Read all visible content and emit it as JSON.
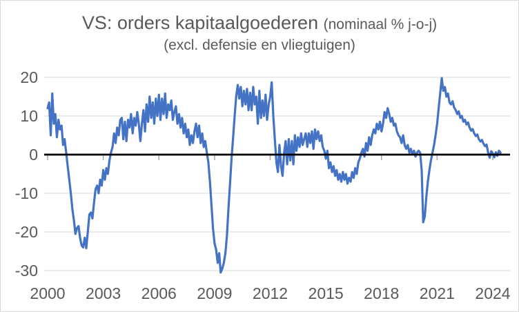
{
  "window": {
    "background": "#ffffff",
    "border_color": "#d9d9d9"
  },
  "title": {
    "main": "VS: orders kapitaalgoederen ",
    "paren": "(nominaal % j-o-j)",
    "subtitle": "(excl. defensie en vliegtuigen)",
    "color": "#595959"
  },
  "chart_data": {
    "type": "line",
    "title": "VS: orders kapitaalgoederen (nominaal % j-o-j) (excl. defensie en vliegtuigen)",
    "xlabel": "",
    "ylabel": "",
    "x_tick_years": [
      2000,
      2003,
      2006,
      2009,
      2012,
      2015,
      2018,
      2021,
      2024
    ],
    "y_ticks": [
      20,
      10,
      0,
      -10,
      -20,
      -30
    ],
    "ylim": [
      -32,
      21.5
    ],
    "xlim": [
      2000,
      2024.8
    ],
    "grid": "horizontal",
    "gridline_values": [
      20,
      10,
      -10,
      -20,
      -30
    ],
    "gridline_color": "#d9d9d9",
    "zero_line": true,
    "zero_line_color": "#000000",
    "tick_mark_color": "#a6a6a6",
    "axis_label_color": "#595959",
    "legend": "none",
    "series": [
      {
        "name": "VS orders kapitaalgoederen excl. defensie en vliegtuigen, nominaal % j-o-j",
        "color": "#4472C4",
        "frequency": "monthly",
        "start": "2000-01",
        "end": "2024-06",
        "values": [
          12,
          13.5,
          5,
          15.8,
          8,
          10.5,
          4.5,
          9,
          6.5,
          7.5,
          2.5,
          4,
          0.5,
          -3,
          -6.5,
          -10,
          -14,
          -17,
          -20.5,
          -19,
          -18.5,
          -21.5,
          -23.5,
          -24,
          -21.5,
          -24.2,
          -20,
          -15.5,
          -15,
          -16.5,
          -12.5,
          -9,
          -8,
          -10,
          -6.5,
          -8,
          -4,
          -6.5,
          -3.5,
          -5,
          -1.5,
          0.5,
          2,
          5.5,
          3,
          7,
          5,
          9,
          9.5,
          4,
          8.5,
          3.5,
          9,
          7,
          10.5,
          5.5,
          9.5,
          7.5,
          11,
          8,
          3.5,
          8,
          11.5,
          6,
          13,
          8.5,
          15,
          9.5,
          13.5,
          8,
          14.5,
          10,
          15.5,
          9,
          14.5,
          10.5,
          15.8,
          9.5,
          13,
          11.5,
          14,
          9,
          11,
          12.5,
          8,
          10.5,
          7,
          9.5,
          5.5,
          8,
          4.5,
          6.5,
          2.5,
          5,
          3,
          6,
          8,
          4.5,
          7.5,
          3,
          5.5,
          2,
          3.5,
          0.5,
          -2,
          -7,
          -13,
          -19,
          -23,
          -24.5,
          -28,
          -25.5,
          -30.5,
          -29.5,
          -28,
          -25.5,
          -21,
          -14,
          -7.5,
          -1,
          4.5,
          10,
          15,
          18,
          14.5,
          17.5,
          12.5,
          16.5,
          13,
          17,
          11.5,
          16,
          11.5,
          17.5,
          13,
          15,
          8,
          16.5,
          9.5,
          14,
          10,
          15.5,
          9,
          13,
          15,
          18.7,
          10,
          4,
          -2,
          -4.5,
          2.5,
          -3,
          -5.5,
          0.5,
          3.5,
          -2.5,
          4,
          -1.5,
          3.5,
          -2.5,
          5,
          1,
          4.5,
          2,
          5.5,
          2.5,
          4,
          5.5,
          2,
          5.5,
          3,
          6,
          1.5,
          6.5,
          4,
          6,
          3.5,
          5,
          2,
          1,
          -1,
          1,
          -3.5,
          -2,
          -4.5,
          -3,
          -5.5,
          -4,
          -6.5,
          -5,
          -7,
          -4.5,
          -6.5,
          -5,
          -7.5,
          -6,
          -7,
          -4.5,
          -6,
          -3.5,
          -5,
          -2,
          -1,
          0.5,
          1.5,
          -0.5,
          3,
          1,
          4.5,
          2.5,
          5,
          6.5,
          5.5,
          8,
          6.5,
          8.5,
          6,
          8,
          11,
          9.5,
          12,
          10.5,
          8.5,
          9.5,
          7.5,
          8,
          6,
          5,
          4.5,
          3,
          5,
          2.5,
          1.5,
          2.5,
          0.5,
          1.5,
          0,
          1,
          -0.5,
          0.5,
          1,
          0.5,
          -4,
          -17.5,
          -16,
          -11,
          -7,
          -4,
          -1.5,
          0.5,
          2.5,
          5,
          8,
          12,
          16,
          19.8,
          16.5,
          17.5,
          15,
          15.8,
          13.5,
          13,
          13.8,
          12.2,
          11.5,
          10.5,
          11.2,
          9.5,
          10,
          8.5,
          9,
          7.8,
          8.3,
          7,
          6.2,
          6.6,
          5.5,
          4.8,
          5.2,
          4,
          3.4,
          3.8,
          2.8,
          2.2,
          2.6,
          0.5,
          -0.8,
          0.9,
          0.3,
          -0.7,
          0.6,
          -0.3,
          1.0,
          0.5
        ]
      }
    ]
  }
}
